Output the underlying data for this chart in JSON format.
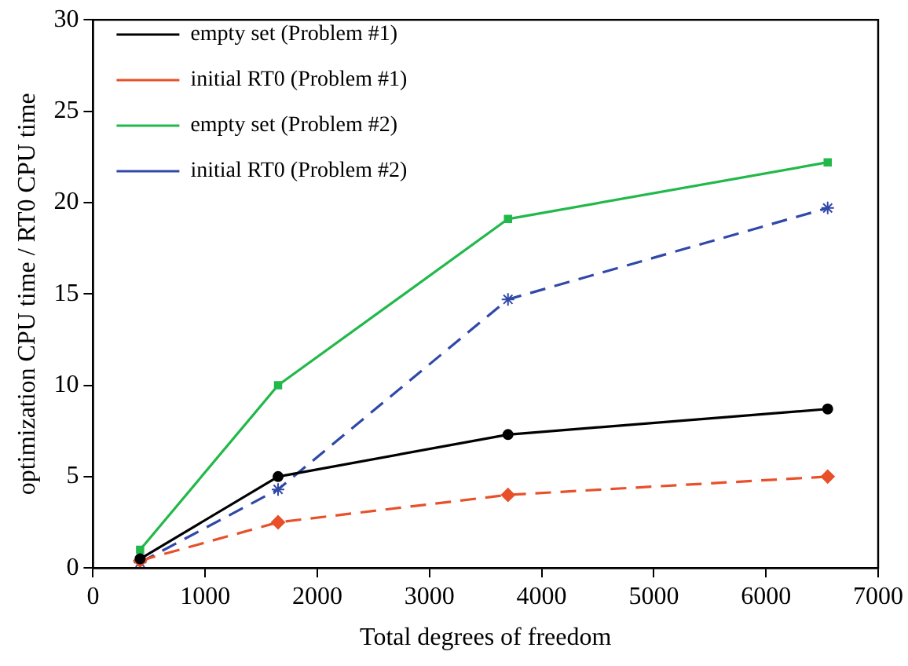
{
  "chart_data": {
    "type": "line",
    "xlabel": "Total degrees of freedom",
    "ylabel": "optimization CPU time / RT0 CPU time",
    "x": [
      420,
      1650,
      3700,
      6550
    ],
    "series": [
      {
        "name": "empty set (Problem #1)",
        "color": "#000000",
        "values": [
          0.5,
          5.0,
          7.3,
          8.7
        ],
        "marker": "circle",
        "line_style": "solid"
      },
      {
        "name": "initial RT0 (Problem #1)",
        "color": "#e8502a",
        "values": [
          0.4,
          2.5,
          4.0,
          5.0
        ],
        "marker": "diamond",
        "line_style": "dashed"
      },
      {
        "name": "empty set (Problem #2)",
        "color": "#22b84a",
        "values": [
          1.0,
          10.0,
          19.1,
          22.2
        ],
        "marker": "square",
        "line_style": "solid"
      },
      {
        "name": "initial RT0 (Problem #2)",
        "color": "#3048a8",
        "values": [
          0.3,
          4.3,
          14.7,
          19.7
        ],
        "marker": "cross",
        "line_style": "dashed"
      }
    ],
    "xlim": [
      0,
      7000
    ],
    "xticks": [
      0,
      1000,
      2000,
      3000,
      4000,
      5000,
      6000,
      7000
    ],
    "ylim": [
      0,
      30
    ],
    "yticks": [
      0,
      5,
      10,
      15,
      20,
      25,
      30
    ],
    "grid": false,
    "legend": "top left"
  }
}
